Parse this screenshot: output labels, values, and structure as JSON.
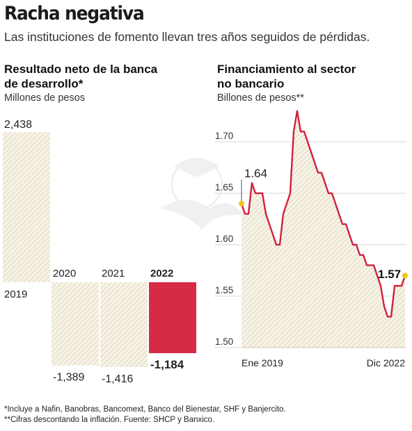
{
  "header": {
    "title": "Racha negativa",
    "subtitle": "Las instituciones de fomento llevan tres años seguidos de pérdidas."
  },
  "left_panel": {
    "title_line1": "Resultado neto de la banca",
    "title_line2": "de desarrollo*",
    "unit": "Millones de pesos"
  },
  "right_panel": {
    "title_line1": "Financiamiento al sector",
    "title_line2": "no bancario",
    "unit": "Billones de pesos**"
  },
  "footnotes": {
    "note1": "*Incluye a Nafin, Banobras, Bancomext, Banco del Bienestar, SHF y Banjercito.",
    "note2": "**Cifras descontando la inflación. Fuente: SHCP y Banxico."
  },
  "colors": {
    "hatch": "#e2d9bf",
    "hatch_bg": "#f7f3e8",
    "highlight": "#d62a45",
    "line": "#d1203f",
    "endpoint": "#f2c618",
    "grid": "#d9d9d9"
  },
  "chart_data": [
    {
      "type": "bar",
      "title": "Resultado neto de la banca de desarrollo*",
      "ylabel": "Millones de pesos",
      "categories": [
        "2019",
        "2020",
        "2021",
        "2022"
      ],
      "values": [
        2438,
        -1389,
        -1416,
        -1184
      ],
      "value_labels": [
        "2,438",
        "-1,389",
        "-1,416",
        "-1,184"
      ],
      "highlight": "2022",
      "ylim": [
        -1416,
        2438
      ]
    },
    {
      "type": "area",
      "title": "Financiamiento al sector no bancario",
      "ylabel": "Billones de pesos**",
      "x_tick_labels": [
        "Ene 2019",
        "Dic 2022"
      ],
      "y_ticks": [
        "1.50",
        "1.55",
        "1.60",
        "1.65",
        "1.70"
      ],
      "ylim": [
        1.5,
        1.73
      ],
      "start_label": "1.64",
      "end_label": "1.57",
      "series": [
        {
          "values": [
            1.64,
            1.63,
            1.63,
            1.66,
            1.65,
            1.65,
            1.65,
            1.63,
            1.62,
            1.61,
            1.6,
            1.6,
            1.63,
            1.64,
            1.65,
            1.71,
            1.73,
            1.71,
            1.71,
            1.7,
            1.69,
            1.68,
            1.67,
            1.67,
            1.66,
            1.65,
            1.65,
            1.64,
            1.63,
            1.62,
            1.62,
            1.61,
            1.6,
            1.6,
            1.59,
            1.59,
            1.58,
            1.58,
            1.58,
            1.57,
            1.56,
            1.54,
            1.53,
            1.53,
            1.56,
            1.56,
            1.56,
            1.57
          ]
        }
      ]
    }
  ]
}
